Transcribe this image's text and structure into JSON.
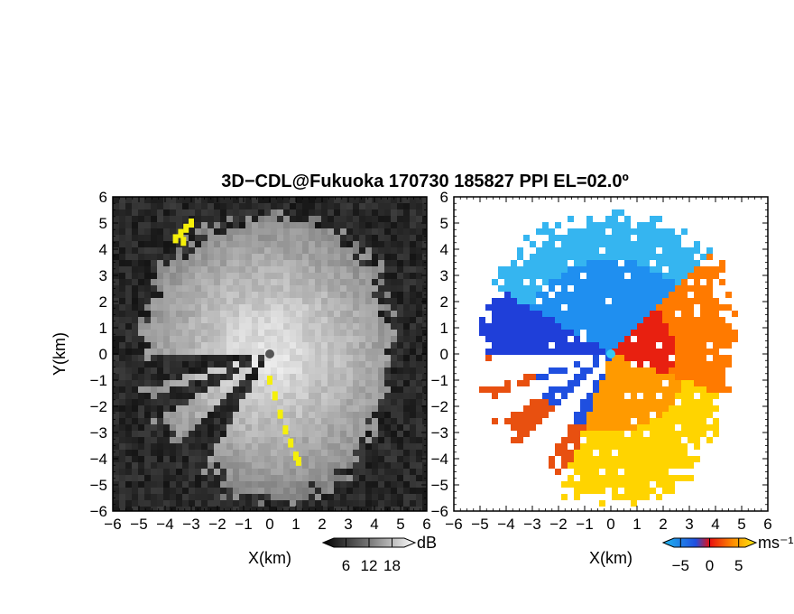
{
  "title": "3D−CDL@Fukuoka 170730 185827 PPI EL=02.0º",
  "chart_data": [
    {
      "type": "heatmap",
      "panel": "left",
      "quantity": "SNR",
      "xlabel": "X(km)",
      "ylabel": "Y(km)",
      "xlim": [
        -6,
        6
      ],
      "ylim": [
        -6,
        6
      ],
      "xticks": [
        "−6",
        "−5",
        "−4",
        "−3",
        "−2",
        "−1",
        "0",
        "1",
        "2",
        "3",
        "4",
        "5",
        "6"
      ],
      "yticks": [
        "−6",
        "−5",
        "−4",
        "−3",
        "−2",
        "−1",
        "0",
        "1",
        "2",
        "3",
        "4",
        "5",
        "6"
      ],
      "colormap": "grayscale",
      "highlight_color": "#f5f00a",
      "colorbar": {
        "unit": "dB",
        "tick_labels": [
          "6",
          "12",
          "18"
        ],
        "range": [
          0,
          24
        ],
        "ticks": [
          6,
          12,
          18
        ]
      },
      "blocked_sectors_deg_from_north": [
        [
          210,
          225
        ],
        [
          240,
          250
        ],
        [
          255,
          268
        ]
      ],
      "grid": false
    },
    {
      "type": "heatmap",
      "panel": "right",
      "quantity": "radial velocity",
      "xlabel": "X(km)",
      "ylabel": "",
      "xlim": [
        -6,
        6
      ],
      "ylim": [
        -6,
        6
      ],
      "xticks": [
        "−6",
        "−5",
        "−4",
        "−3",
        "−2",
        "−1",
        "0",
        "1",
        "2",
        "3",
        "4",
        "5",
        "6"
      ],
      "yticks": [
        "−6",
        "−5",
        "−4",
        "−3",
        "−2",
        "−1",
        "0",
        "1",
        "2",
        "3",
        "4",
        "5",
        "6"
      ],
      "colormap": [
        "#1f3fd9",
        "#1f8ff0",
        "#35c8f5",
        "#e81010",
        "#ff7a00",
        "#ffcc00",
        "#ffee10"
      ],
      "colorbar": {
        "unit": "ms⁻¹",
        "tick_labels": [
          "−5",
          "0",
          "5"
        ],
        "range": [
          -8,
          8
        ],
        "ticks": [
          -5,
          0,
          5
        ]
      },
      "grid": false
    }
  ]
}
